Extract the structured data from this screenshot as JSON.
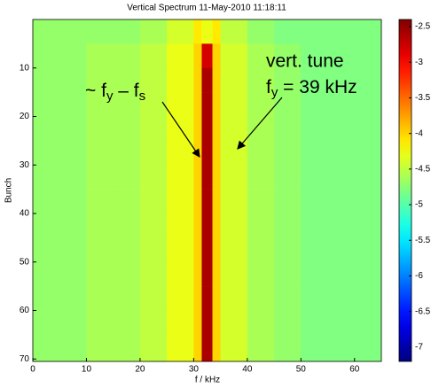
{
  "chart_data": {
    "type": "heatmap",
    "title": "Vertical Spectrum 11-May-2010 11:18:11",
    "x_label": "f / kHz",
    "y_label": "Bunch",
    "xbins": [
      0,
      5,
      10,
      15,
      20,
      25,
      30,
      31.5,
      33.5,
      35,
      40,
      45,
      50,
      55,
      60,
      65
    ],
    "ybins": [
      0,
      5,
      10,
      15,
      20,
      25,
      30,
      35,
      40,
      45,
      50,
      55,
      60,
      65,
      70.5
    ],
    "z": [
      [
        -4.7,
        -4.7,
        -4.7,
        -4.7,
        -4.6,
        -4.4,
        -4.1,
        -4.3,
        -4.1,
        -4.5,
        -4.7,
        -4.8,
        -4.8,
        -4.8,
        -4.8
      ],
      [
        -4.7,
        -4.7,
        -4.6,
        -4.6,
        -4.5,
        -4.3,
        -4.0,
        -2.8,
        -4.0,
        -4.4,
        -4.6,
        -4.7,
        -4.8,
        -4.8,
        -4.8
      ],
      [
        -4.7,
        -4.7,
        -4.6,
        -4.6,
        -4.5,
        -4.3,
        -4.0,
        -2.6,
        -4.0,
        -4.4,
        -4.6,
        -4.7,
        -4.8,
        -4.8,
        -4.8
      ],
      [
        -4.7,
        -4.7,
        -4.6,
        -4.6,
        -4.5,
        -4.3,
        -4.0,
        -2.6,
        -4.0,
        -4.4,
        -4.6,
        -4.7,
        -4.8,
        -4.8,
        -4.8
      ],
      [
        -4.7,
        -4.7,
        -4.6,
        -4.6,
        -4.5,
        -4.3,
        -4.0,
        -2.6,
        -4.0,
        -4.4,
        -4.6,
        -4.7,
        -4.8,
        -4.8,
        -4.8
      ],
      [
        -4.7,
        -4.7,
        -4.6,
        -4.6,
        -4.5,
        -4.3,
        -4.0,
        -2.6,
        -4.0,
        -4.4,
        -4.6,
        -4.7,
        -4.8,
        -4.8,
        -4.8
      ],
      [
        -4.7,
        -4.7,
        -4.6,
        -4.6,
        -4.5,
        -4.3,
        -4.0,
        -2.6,
        -4.0,
        -4.4,
        -4.6,
        -4.7,
        -4.8,
        -4.8,
        -4.8
      ],
      [
        -4.7,
        -4.7,
        -4.6,
        -4.6,
        -4.5,
        -4.3,
        -4.0,
        -2.6,
        -4.0,
        -4.4,
        -4.6,
        -4.7,
        -4.8,
        -4.8,
        -4.8
      ],
      [
        -4.7,
        -4.7,
        -4.6,
        -4.6,
        -4.5,
        -4.3,
        -4.0,
        -2.6,
        -4.0,
        -4.4,
        -4.6,
        -4.7,
        -4.8,
        -4.8,
        -4.8
      ],
      [
        -4.7,
        -4.7,
        -4.6,
        -4.6,
        -4.5,
        -4.3,
        -4.0,
        -2.6,
        -4.0,
        -4.4,
        -4.6,
        -4.7,
        -4.8,
        -4.8,
        -4.8
      ],
      [
        -4.7,
        -4.7,
        -4.6,
        -4.6,
        -4.5,
        -4.3,
        -4.0,
        -2.6,
        -4.0,
        -4.4,
        -4.6,
        -4.7,
        -4.8,
        -4.8,
        -4.8
      ],
      [
        -4.7,
        -4.7,
        -4.6,
        -4.6,
        -4.5,
        -4.3,
        -4.0,
        -2.6,
        -4.0,
        -4.4,
        -4.6,
        -4.7,
        -4.8,
        -4.8,
        -4.8
      ],
      [
        -4.7,
        -4.7,
        -4.6,
        -4.6,
        -4.5,
        -4.3,
        -4.0,
        -2.6,
        -4.0,
        -4.4,
        -4.6,
        -4.7,
        -4.8,
        -4.8,
        -4.8
      ],
      [
        -4.7,
        -4.7,
        -4.6,
        -4.6,
        -4.5,
        -4.3,
        -4.0,
        -2.6,
        -4.0,
        -4.4,
        -4.6,
        -4.7,
        -4.8,
        -4.8,
        -4.8
      ]
    ],
    "xlim": [
      0,
      65
    ],
    "xticks": [
      0,
      10,
      20,
      30,
      40,
      50,
      60
    ],
    "ylim": [
      0,
      70.5
    ],
    "yticks": [
      10,
      20,
      30,
      40,
      50,
      60,
      70
    ],
    "colormap": "jet",
    "clim": [
      -7.2,
      -2.4
    ],
    "cticks": [
      -2.5,
      -3,
      -3.5,
      -4,
      -4.5,
      -5,
      -5.5,
      -6,
      -6.5,
      -7
    ],
    "annotations": {
      "sync": [
        "~ f",
        "y",
        " – f",
        "s"
      ],
      "tune": [
        "vert. tune",
        "f",
        "y",
        " = 39 kHz"
      ]
    }
  }
}
